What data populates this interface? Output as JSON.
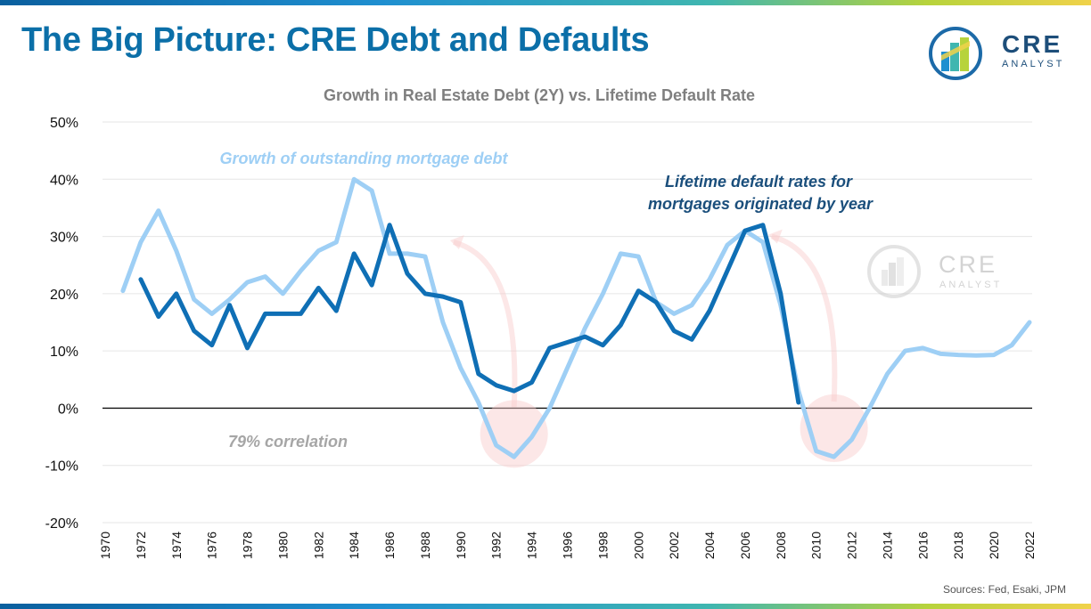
{
  "header": {
    "title": "The Big Picture: CRE Debt and Defaults",
    "brand_main": "CRE",
    "brand_sub": "ANALYST",
    "sources": "Sources: Fed, Esaki, JPM"
  },
  "watermark": {
    "main": "CRE",
    "sub": "ANALYST"
  },
  "colors": {
    "debt_growth": "#9ecff5",
    "default_rate": "#0f6fb5",
    "title_blue": "#0b6fa8",
    "annotation_dark": "#1b4f7c",
    "annotation_grey": "#a6a6a6",
    "highlight": "#f9caca"
  },
  "chart_data": {
    "type": "line",
    "title": "Growth in Real Estate Debt (2Y) vs. Lifetime Default Rate",
    "xlabel": "",
    "ylabel": "",
    "ylim": [
      -20,
      50
    ],
    "yticks": [
      -20,
      -10,
      0,
      10,
      20,
      30,
      40,
      50
    ],
    "ytick_labels": [
      "-20%",
      "-10%",
      "0%",
      "10%",
      "20%",
      "30%",
      "40%",
      "50%"
    ],
    "xlim": [
      1970,
      2022
    ],
    "xticks": [
      1970,
      1972,
      1974,
      1976,
      1978,
      1980,
      1982,
      1984,
      1986,
      1988,
      1990,
      1992,
      1994,
      1996,
      1998,
      2000,
      2002,
      2004,
      2006,
      2008,
      2010,
      2012,
      2014,
      2016,
      2018,
      2020,
      2022
    ],
    "grid": true,
    "annotations": [
      {
        "text": "Growth of outstanding mortgage debt",
        "series": "debt_growth"
      },
      {
        "text": "Lifetime default rates for",
        "series": "default_rate"
      },
      {
        "text": "mortgages originated by year",
        "series": "default_rate"
      },
      {
        "text": "79% correlation",
        "series": "none"
      }
    ],
    "series": [
      {
        "key": "debt_growth",
        "x": [
          1971,
          1972,
          1973,
          1974,
          1975,
          1976,
          1977,
          1978,
          1979,
          1980,
          1981,
          1982,
          1983,
          1984,
          1985,
          1986,
          1987,
          1988,
          1989,
          1990,
          1991,
          1992,
          1993,
          1994,
          1995,
          1996,
          1997,
          1998,
          1999,
          2000,
          2001,
          2002,
          2003,
          2004,
          2005,
          2006,
          2007,
          2008,
          2009,
          2010,
          2011,
          2012,
          2013,
          2014,
          2015,
          2016,
          2017,
          2018,
          2019,
          2020,
          2021,
          2022
        ],
        "values": [
          20.5,
          29,
          34.5,
          27.5,
          19,
          16.5,
          19,
          22,
          23,
          20,
          24,
          27.5,
          29,
          40,
          38,
          27,
          27,
          26.5,
          15,
          7,
          1,
          -6.5,
          -8.5,
          -5,
          0,
          7,
          14,
          20,
          27,
          26.5,
          18.5,
          16.5,
          18,
          22.5,
          28.5,
          31,
          29,
          18,
          3,
          -7.5,
          -8.5,
          -5.5,
          0,
          6,
          10,
          10.5,
          9.5,
          9.3,
          9.2,
          9.3,
          11,
          15
        ]
      },
      {
        "key": "default_rate",
        "x": [
          1972,
          1973,
          1974,
          1975,
          1976,
          1977,
          1978,
          1979,
          1980,
          1981,
          1982,
          1983,
          1984,
          1985,
          1986,
          1987,
          1988,
          1989,
          1990,
          1991,
          1992,
          1993,
          1994,
          1995,
          1996,
          1997,
          1998,
          1999,
          2000,
          2001,
          2002,
          2003,
          2004,
          2005,
          2006,
          2007,
          2008,
          2009
        ],
        "values": [
          22.5,
          16,
          20,
          13.5,
          11,
          18,
          10.5,
          16.5,
          16.5,
          16.5,
          21,
          17,
          27,
          21.5,
          32,
          23.5,
          20,
          19.5,
          18.5,
          6,
          4,
          3,
          4.5,
          10.5,
          11.5,
          12.5,
          11,
          14.5,
          20.5,
          18.5,
          13.5,
          12,
          17,
          24,
          31,
          32,
          20,
          1
        ]
      }
    ]
  }
}
